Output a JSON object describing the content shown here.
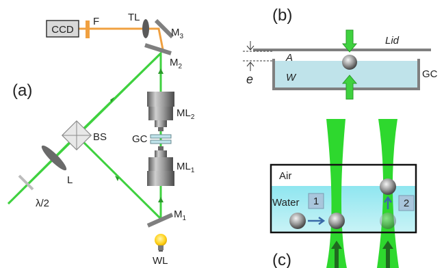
{
  "panels": {
    "a": "(a)",
    "b": "(b)",
    "c": "(c)"
  },
  "panel_a": {
    "ccd": "CCD",
    "filter": "F",
    "tube_lens": "TL",
    "mirror3": {
      "main": "M",
      "sub": "3"
    },
    "mirror2": {
      "main": "M",
      "sub": "2"
    },
    "mirror1": {
      "main": "M",
      "sub": "1"
    },
    "ml2": {
      "main": "ML",
      "sub": "2"
    },
    "ml1": {
      "main": "ML",
      "sub": "1"
    },
    "gc": "GC",
    "bs": "BS",
    "lens": "L",
    "half_wave": "λ/2",
    "white_light": "WL"
  },
  "panel_b": {
    "lid": "Lid",
    "air": "A",
    "water": "W",
    "gc": "GC",
    "thickness": "e"
  },
  "panel_c": {
    "air": "Air",
    "water": "Water",
    "step1": "1",
    "step2": "2"
  },
  "colors": {
    "laser": "#3fd13f",
    "beam_orange": "#f0a040",
    "water": "#aee8ec",
    "gc_water": "#bfe3ea",
    "gray": "#7f7f7f"
  }
}
